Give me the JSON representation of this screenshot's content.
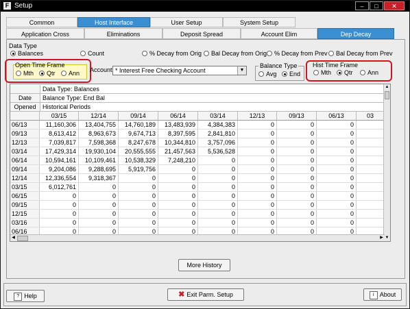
{
  "window": {
    "app_icon": "F",
    "title": "Setup"
  },
  "tabs_row1": [
    {
      "label": "Common",
      "active": false
    },
    {
      "label": "Host Interface",
      "active": true
    },
    {
      "label": "User Setup",
      "active": false
    },
    {
      "label": "System Setup",
      "active": false
    }
  ],
  "tabs_row2": [
    {
      "label": "Application Cross Reference",
      "active": false
    },
    {
      "label": "Eliminations",
      "active": false
    },
    {
      "label": "Deposit Spread",
      "active": false
    },
    {
      "label": "Account Elim",
      "active": false
    },
    {
      "label": "Dep Decay",
      "active": true
    }
  ],
  "data_type": {
    "label": "Data Type",
    "options": [
      "Balances",
      "Count",
      "% Decay from Orig",
      "Bal Decay from Orig",
      "% Decay from Prev",
      "Bal Decay from Prev"
    ],
    "selected": "Balances"
  },
  "open_time_frame": {
    "label": "Open Time Frame",
    "options": [
      "Mth",
      "Qtr",
      "Ann"
    ],
    "selected": "Qtr"
  },
  "account": {
    "label": "Account",
    "value": "* Interest Free Checking Account"
  },
  "balance_type": {
    "label": "Balance Type",
    "options": [
      "Avg",
      "End"
    ],
    "selected": "End"
  },
  "hist_time_frame": {
    "label": "Hist Time Frame",
    "options": [
      "Mth",
      "Qtr",
      "Ann"
    ],
    "selected": "Qtr"
  },
  "grid": {
    "info_rows": [
      {
        "left": "",
        "text": "Data Type: Balances"
      },
      {
        "left": "Date",
        "text": "Balance Type: End Bal"
      },
      {
        "left": "Opened",
        "text": "Historical Periods"
      }
    ],
    "columns": [
      "03/15",
      "12/14",
      "09/14",
      "06/14",
      "03/14",
      "12/13",
      "09/13",
      "06/13",
      "03"
    ],
    "rows": [
      {
        "date": "06/13",
        "values": [
          "11,160,306",
          "13,404,755",
          "14,760,189",
          "13,483,939",
          "4,384,383",
          "0",
          "0",
          "0"
        ]
      },
      {
        "date": "09/13",
        "values": [
          "8,613,412",
          "8,963,673",
          "9,674,713",
          "8,397,595",
          "2,841,810",
          "0",
          "0",
          "0"
        ]
      },
      {
        "date": "12/13",
        "values": [
          "7,039,817",
          "7,598,368",
          "8,247,678",
          "10,344,810",
          "3,757,096",
          "0",
          "0",
          "0"
        ]
      },
      {
        "date": "03/14",
        "values": [
          "17,429,314",
          "19,930,104",
          "20,555,555",
          "21,457,563",
          "5,536,528",
          "0",
          "0",
          "0"
        ]
      },
      {
        "date": "06/14",
        "values": [
          "10,594,161",
          "10,109,461",
          "10,538,329",
          "7,248,210",
          "0",
          "0",
          "0",
          "0"
        ]
      },
      {
        "date": "09/14",
        "values": [
          "9,204,086",
          "9,288,695",
          "5,919,756",
          "0",
          "0",
          "0",
          "0",
          "0"
        ]
      },
      {
        "date": "12/14",
        "values": [
          "12,336,554",
          "9,318,367",
          "0",
          "0",
          "0",
          "0",
          "0",
          "0"
        ]
      },
      {
        "date": "03/15",
        "values": [
          "6,012,761",
          "0",
          "0",
          "0",
          "0",
          "0",
          "0",
          "0"
        ]
      },
      {
        "date": "06/15",
        "values": [
          "0",
          "0",
          "0",
          "0",
          "0",
          "0",
          "0",
          "0"
        ]
      },
      {
        "date": "09/15",
        "values": [
          "0",
          "0",
          "0",
          "0",
          "0",
          "0",
          "0",
          "0"
        ]
      },
      {
        "date": "12/15",
        "values": [
          "0",
          "0",
          "0",
          "0",
          "0",
          "0",
          "0",
          "0"
        ]
      },
      {
        "date": "03/16",
        "values": [
          "0",
          "0",
          "0",
          "0",
          "0",
          "0",
          "0",
          "0"
        ]
      },
      {
        "date": "06/16",
        "values": [
          "0",
          "0",
          "0",
          "0",
          "0",
          "0",
          "0",
          "0"
        ]
      }
    ]
  },
  "buttons": {
    "more_history": "More History",
    "help": "Help",
    "exit": "Exit Parm. Setup",
    "about": "About"
  }
}
